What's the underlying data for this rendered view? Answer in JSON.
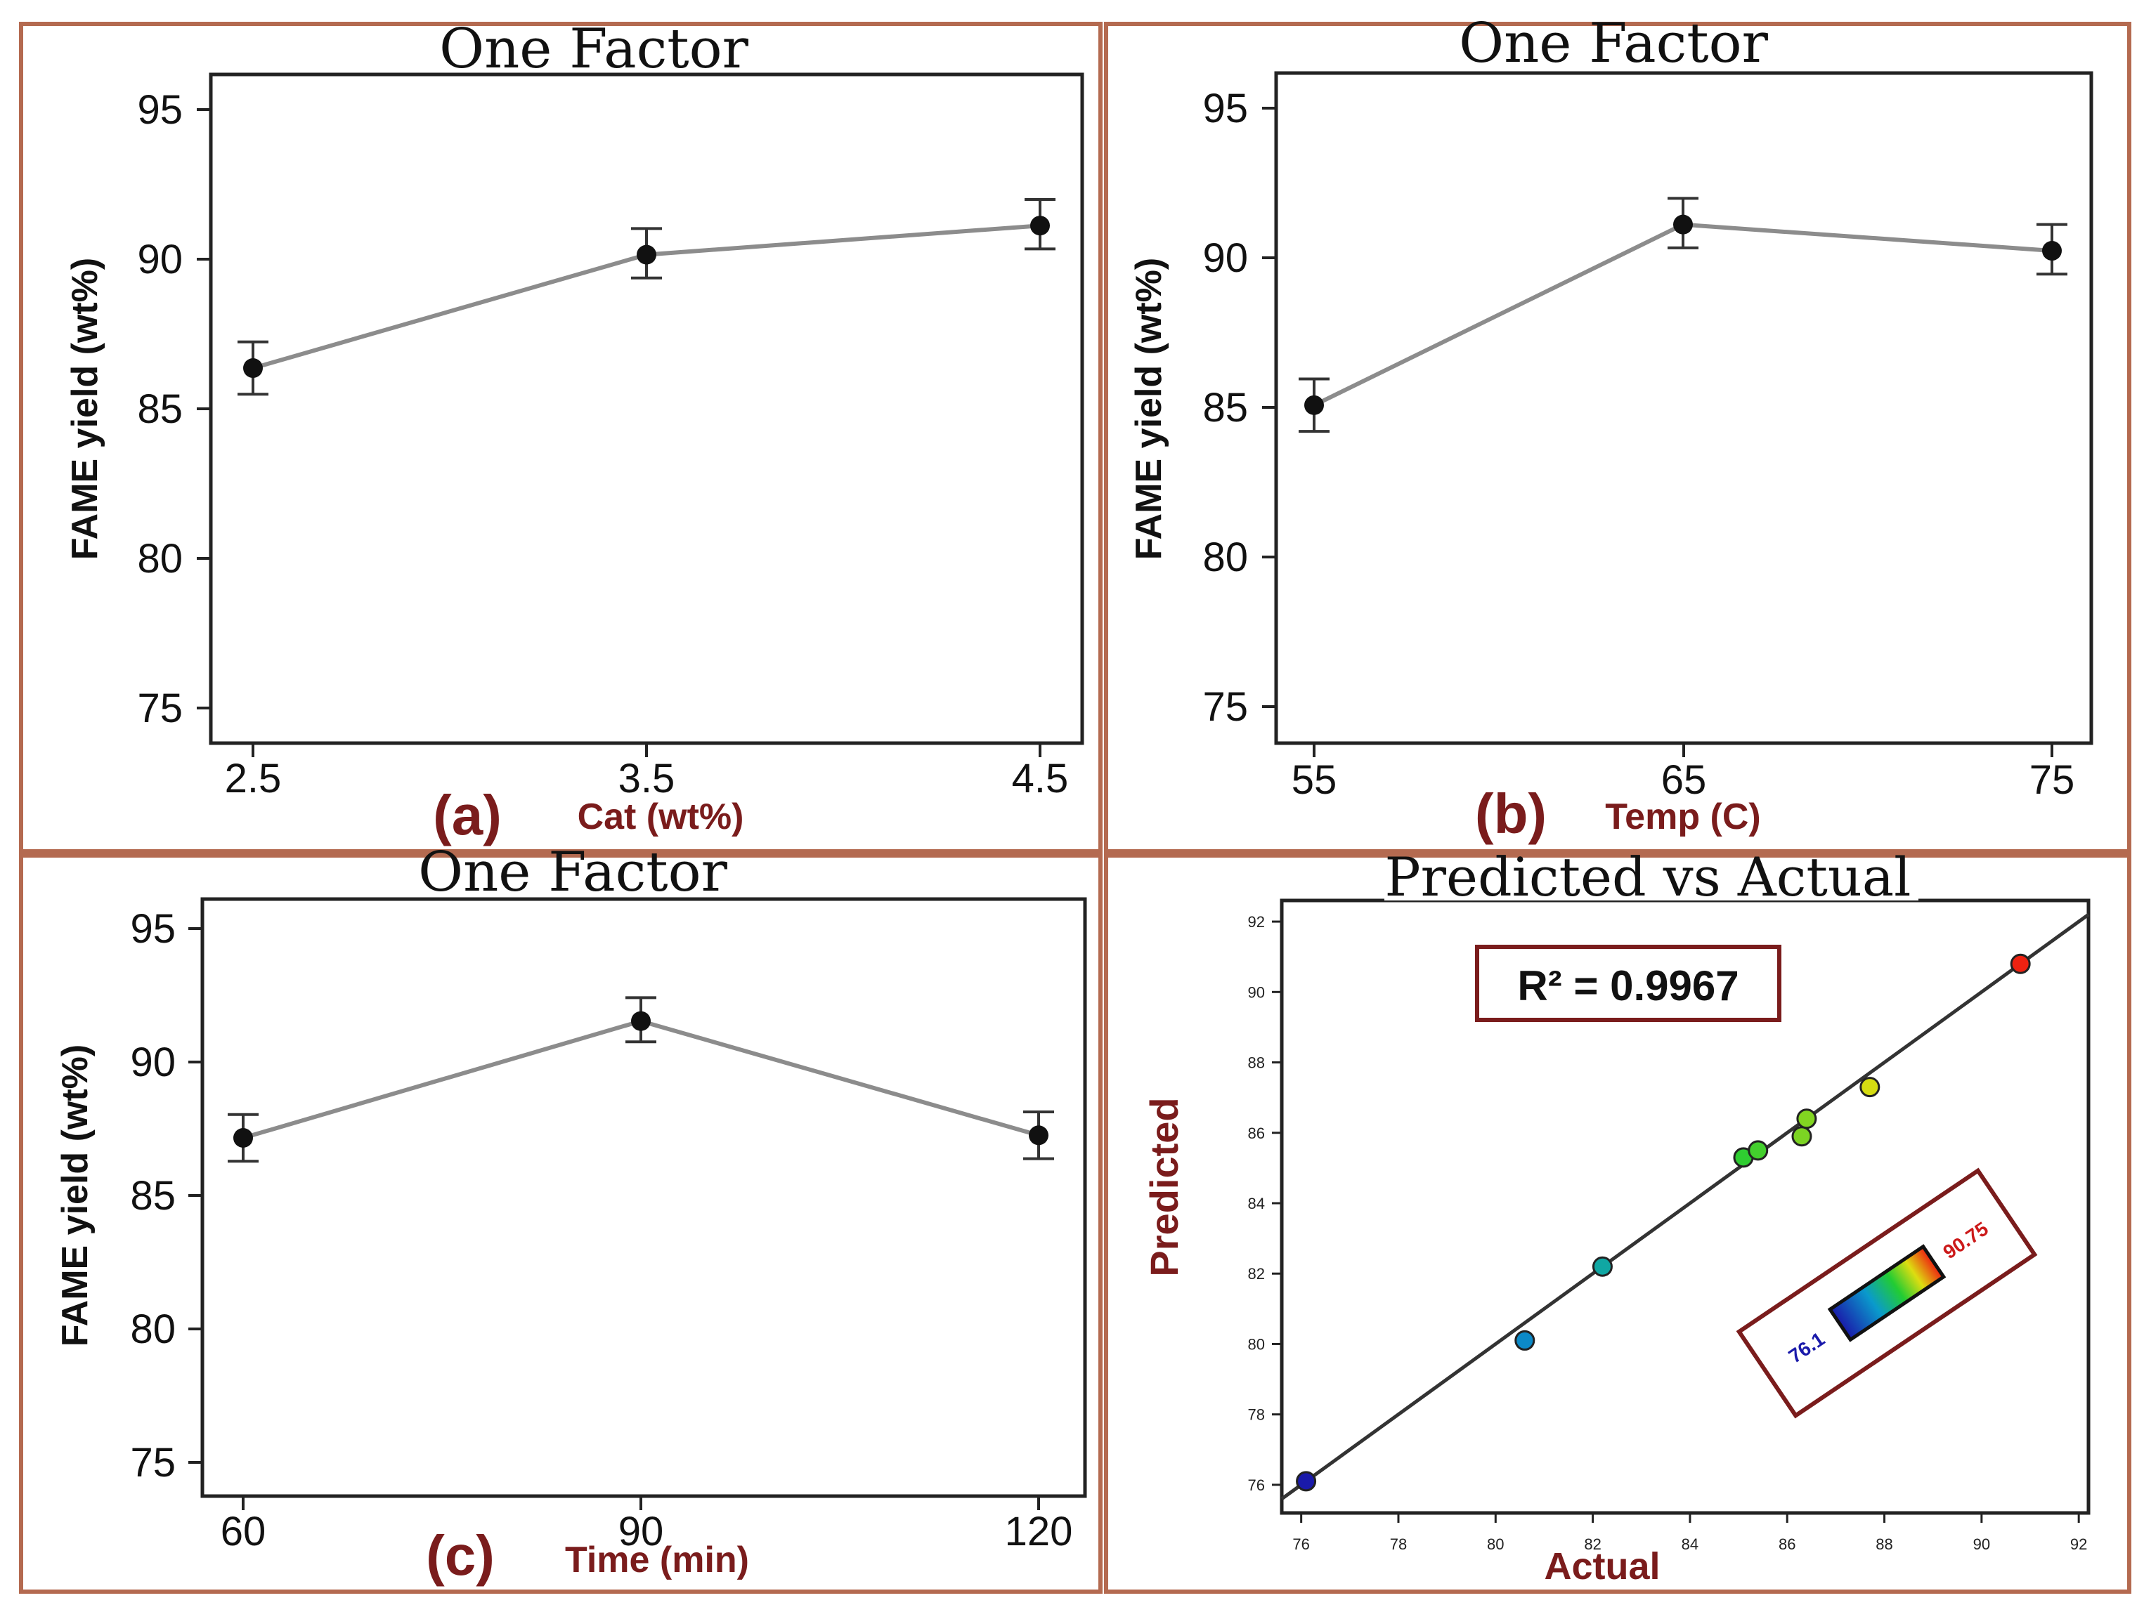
{
  "figure": {
    "frame_color": "#b46a50",
    "label_color": "#7a1c1c",
    "line_color": "#8c8c8c",
    "axis_color": "#222222"
  },
  "panels": {
    "a": {
      "title": "One Factor",
      "tag": "(a)",
      "xlabel": "Cat (wt%)",
      "ylabel": "FAME yield (wt%)",
      "xticks": [
        "2.5",
        "3.5",
        "4.5"
      ],
      "yticks": [
        "75",
        "80",
        "85",
        "90",
        "95"
      ]
    },
    "b": {
      "title": "One Factor",
      "tag": "(b)",
      "xlabel": "Temp (C)",
      "ylabel": "FAME yield (wt%)",
      "xticks": [
        "55",
        "65",
        "75"
      ],
      "yticks": [
        "75",
        "80",
        "85",
        "90",
        "95"
      ]
    },
    "c": {
      "title": "One Factor",
      "tag": "(c)",
      "xlabel": "Time (min)",
      "ylabel": "FAME yield (wt%)",
      "xticks": [
        "60",
        "90",
        "120"
      ],
      "yticks": [
        "75",
        "80",
        "85",
        "90",
        "95"
      ]
    },
    "d": {
      "title": "Predicted vs Actual",
      "xlabel": "Actual",
      "ylabel": "Predicted",
      "r2_label": "R² = 0.9967",
      "legend_low": "76.1",
      "legend_high": "90.75",
      "xticks": [
        "76",
        "78",
        "80",
        "82",
        "84",
        "86",
        "88",
        "90",
        "92"
      ],
      "yticks": [
        "76",
        "78",
        "80",
        "82",
        "84",
        "86",
        "88",
        "90",
        "92"
      ]
    }
  },
  "chart_data": [
    {
      "type": "line",
      "title": "One Factor",
      "xlabel": "Cat (wt%)",
      "ylabel": "FAME yield (wt%)",
      "categories": [
        "2.5",
        "3.5",
        "4.5"
      ],
      "values": [
        86.9,
        90.8,
        91.8
      ],
      "error_low": [
        86.0,
        90.0,
        91.0
      ],
      "error_high": [
        87.8,
        91.7,
        92.7
      ],
      "ylim": [
        74,
        97
      ]
    },
    {
      "type": "line",
      "title": "One Factor",
      "xlabel": "Temp (C)",
      "ylabel": "FAME yield (wt%)",
      "categories": [
        "55",
        "65",
        "75"
      ],
      "values": [
        85.6,
        91.8,
        90.9
      ],
      "error_low": [
        84.7,
        91.0,
        90.1
      ],
      "error_high": [
        86.5,
        92.7,
        91.8
      ],
      "ylim": [
        74,
        97
      ]
    },
    {
      "type": "line",
      "title": "One Factor",
      "xlabel": "Time (min)",
      "ylabel": "FAME yield (wt%)",
      "categories": [
        "60",
        "90",
        "120"
      ],
      "values": [
        87.3,
        91.8,
        87.4
      ],
      "error_low": [
        86.4,
        91.0,
        86.5
      ],
      "error_high": [
        88.2,
        92.7,
        88.3
      ],
      "ylim": [
        73.5,
        96.5
      ]
    },
    {
      "type": "scatter",
      "title": "Predicted vs Actual",
      "xlabel": "Actual",
      "ylabel": "Predicted",
      "r_squared": 0.9967,
      "color_range": [
        76.1,
        90.75
      ],
      "xlim": [
        75.6,
        92.2
      ],
      "ylim": [
        75.2,
        92.6
      ],
      "points": [
        {
          "x": 76.1,
          "y": 76.1
        },
        {
          "x": 80.6,
          "y": 80.1
        },
        {
          "x": 82.2,
          "y": 82.2
        },
        {
          "x": 85.1,
          "y": 85.3
        },
        {
          "x": 85.4,
          "y": 85.5
        },
        {
          "x": 86.3,
          "y": 85.9
        },
        {
          "x": 86.4,
          "y": 86.4
        },
        {
          "x": 87.7,
          "y": 87.3
        },
        {
          "x": 90.8,
          "y": 90.8
        }
      ],
      "fit_line": {
        "x": [
          75.6,
          92.2
        ],
        "y": [
          75.6,
          92.2
        ]
      }
    }
  ]
}
